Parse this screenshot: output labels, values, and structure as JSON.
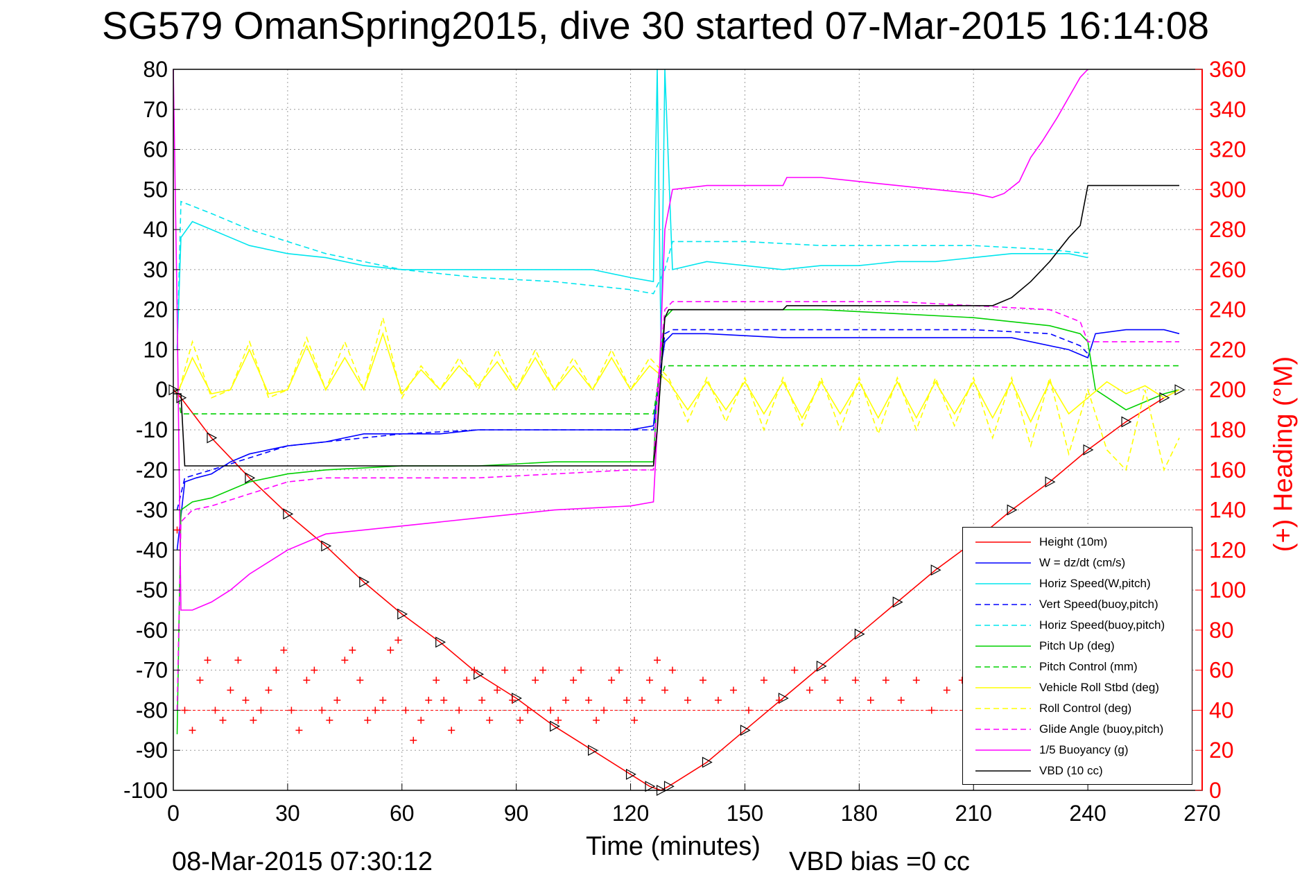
{
  "chart_data": {
    "type": "line",
    "title": "SG579 OmanSpring2015, dive 30 started 07-Mar-2015 16:14:08",
    "xlabel": "Time (minutes)",
    "ylabel": "",
    "y2label": "(+) Heading (°M)",
    "xlim": [
      0,
      270
    ],
    "ylim": [
      -100,
      80
    ],
    "y2lim": [
      0,
      360
    ],
    "xticks": [
      0,
      30,
      60,
      90,
      120,
      150,
      180,
      210,
      240,
      270
    ],
    "yticks": [
      80,
      70,
      60,
      50,
      40,
      30,
      20,
      10,
      0,
      -10,
      -20,
      -30,
      -40,
      -50,
      -60,
      -70,
      -80,
      -90,
      -100
    ],
    "y2ticks": [
      360,
      340,
      320,
      300,
      280,
      260,
      240,
      220,
      200,
      180,
      160,
      140,
      120,
      100,
      80,
      60,
      40,
      20,
      0
    ],
    "grid": true,
    "legend_position": "bottom-right",
    "series": [
      {
        "name": "Height (10m)",
        "color": "#ff0000",
        "style": "solid",
        "marker": "triangle",
        "x": [
          0,
          2,
          10,
          20,
          30,
          40,
          50,
          60,
          70,
          80,
          90,
          100,
          110,
          120,
          125,
          128,
          130,
          140,
          150,
          160,
          170,
          180,
          190,
          200,
          210,
          220,
          230,
          240,
          250,
          260,
          264
        ],
        "y": [
          0,
          -2,
          -12,
          -22,
          -31,
          -39,
          -48,
          -56,
          -63,
          -71,
          -77,
          -84,
          -90,
          -96,
          -99,
          -100,
          -99,
          -93,
          -85,
          -77,
          -69,
          -61,
          -53,
          -45,
          -38,
          -30,
          -23,
          -15,
          -8,
          -2,
          0
        ]
      },
      {
        "name": "W = dz/dt (cm/s)",
        "color": "#0000ff",
        "style": "solid",
        "x": [
          1,
          3,
          6,
          10,
          15,
          20,
          30,
          40,
          50,
          60,
          70,
          80,
          90,
          100,
          110,
          120,
          126,
          127,
          129,
          131,
          140,
          160,
          180,
          200,
          220,
          235,
          240,
          242,
          250,
          260,
          264
        ],
        "y": [
          -40,
          -23,
          -22,
          -21,
          -18,
          -16,
          -14,
          -13,
          -11,
          -11,
          -11,
          -10,
          -10,
          -10,
          -10,
          -10,
          -9,
          0,
          12,
          14,
          14,
          13,
          13,
          13,
          13,
          10,
          8,
          14,
          15,
          15,
          14
        ]
      },
      {
        "name": "Horiz Speed(W,pitch)",
        "color": "#00e5ee",
        "style": "solid",
        "x": [
          1,
          2,
          5,
          10,
          15,
          20,
          30,
          40,
          50,
          60,
          70,
          80,
          90,
          100,
          110,
          120,
          126,
          127,
          128,
          129,
          131,
          140,
          150,
          160,
          170,
          180,
          190,
          200,
          210,
          220,
          230,
          235,
          240
        ],
        "y": [
          10,
          38,
          42,
          40,
          38,
          36,
          34,
          33,
          31,
          30,
          30,
          30,
          30,
          30,
          30,
          28,
          27,
          80,
          10,
          80,
          30,
          32,
          31,
          30,
          31,
          31,
          32,
          32,
          33,
          34,
          34,
          34,
          33
        ]
      },
      {
        "name": "Vert Speed(buoy,pitch)",
        "color": "#0000ff",
        "style": "dashed",
        "x": [
          1,
          3,
          10,
          20,
          30,
          40,
          60,
          80,
          100,
          120,
          126,
          129,
          131,
          150,
          170,
          190,
          210,
          230,
          238,
          240
        ],
        "y": [
          -30,
          -22,
          -20,
          -17,
          -14,
          -13,
          -11,
          -10,
          -10,
          -10,
          -10,
          14,
          15,
          15,
          15,
          15,
          15,
          14,
          11,
          9
        ]
      },
      {
        "name": "Horiz Speed(buoy,pitch)",
        "color": "#00e5ee",
        "style": "dashed",
        "x": [
          1,
          2,
          10,
          20,
          40,
          60,
          80,
          100,
          120,
          126,
          129,
          131,
          150,
          170,
          190,
          210,
          230,
          240
        ],
        "y": [
          10,
          47,
          44,
          40,
          34,
          30,
          28,
          27,
          25,
          24,
          30,
          37,
          37,
          36,
          36,
          36,
          35,
          34
        ]
      },
      {
        "name": "Pitch Up (deg)",
        "color": "#00d000",
        "style": "solid",
        "x": [
          1,
          2,
          5,
          10,
          20,
          30,
          40,
          60,
          80,
          100,
          120,
          126,
          127,
          129,
          131,
          150,
          170,
          190,
          210,
          230,
          238,
          240,
          242,
          250,
          260,
          264
        ],
        "y": [
          -86,
          -30,
          -28,
          -27,
          -23,
          -21,
          -20,
          -19,
          -19,
          -18,
          -18,
          -18,
          0,
          18,
          20,
          20,
          20,
          19,
          18,
          16,
          14,
          12,
          0,
          -5,
          -1,
          0
        ]
      },
      {
        "name": "Pitch Control (mm)",
        "color": "#00d000",
        "style": "dashed",
        "x": [
          1,
          2,
          126,
          127,
          129,
          264
        ],
        "y": [
          0,
          -6,
          -6,
          0,
          6,
          6
        ]
      },
      {
        "name": "Vehicle Roll Stbd (deg)",
        "color": "#ffff00",
        "style": "solid",
        "x": [
          1,
          5,
          10,
          15,
          20,
          25,
          30,
          35,
          40,
          45,
          50,
          55,
          60,
          65,
          70,
          75,
          80,
          85,
          90,
          95,
          100,
          105,
          110,
          115,
          120,
          125,
          130,
          135,
          140,
          145,
          150,
          155,
          160,
          165,
          170,
          175,
          180,
          185,
          190,
          195,
          200,
          205,
          210,
          215,
          220,
          225,
          230,
          235,
          240,
          245,
          250,
          255,
          260,
          264
        ],
        "y": [
          -1,
          8,
          -1,
          0,
          10,
          -1,
          0,
          11,
          0,
          8,
          0,
          14,
          -1,
          5,
          0,
          6,
          1,
          7,
          0,
          8,
          0,
          6,
          0,
          8,
          0,
          6,
          2,
          -5,
          2,
          -5,
          2,
          -6,
          2,
          -7,
          2,
          -6,
          2,
          -7,
          2,
          -7,
          2,
          -6,
          2,
          -7,
          2,
          -8,
          2,
          -6,
          -2,
          2,
          -1,
          1,
          -2,
          0
        ]
      },
      {
        "name": "Roll Control (deg)",
        "color": "#ffff00",
        "style": "dashed",
        "x": [
          1,
          5,
          10,
          15,
          20,
          25,
          30,
          35,
          40,
          45,
          50,
          55,
          60,
          65,
          70,
          75,
          80,
          85,
          90,
          95,
          100,
          105,
          110,
          115,
          120,
          125,
          130,
          135,
          140,
          145,
          150,
          155,
          160,
          165,
          170,
          175,
          180,
          185,
          190,
          195,
          200,
          205,
          210,
          215,
          220,
          225,
          230,
          235,
          240,
          245,
          250,
          255,
          260,
          264
        ],
        "y": [
          -2,
          12,
          -2,
          0,
          12,
          -2,
          0,
          13,
          0,
          12,
          0,
          18,
          -2,
          6,
          0,
          8,
          0,
          10,
          0,
          10,
          0,
          8,
          0,
          10,
          0,
          8,
          3,
          -8,
          3,
          -8,
          3,
          -10,
          3,
          -9,
          3,
          -10,
          3,
          -11,
          3,
          -10,
          3,
          -9,
          3,
          -12,
          3,
          -14,
          3,
          -16,
          0,
          -15,
          -20,
          0,
          -20,
          -12
        ]
      },
      {
        "name": "Glide Angle (buoy,pitch)",
        "color": "#ff00ff",
        "style": "dashed",
        "x": [
          1,
          2,
          5,
          10,
          20,
          30,
          40,
          60,
          80,
          100,
          120,
          126,
          127,
          129,
          131,
          150,
          170,
          190,
          210,
          230,
          238,
          240,
          264
        ],
        "y": [
          -80,
          -33,
          -30,
          -29,
          -26,
          -23,
          -22,
          -22,
          -22,
          -21,
          -20,
          -20,
          0,
          20,
          22,
          22,
          22,
          22,
          21,
          20,
          17,
          12,
          12
        ]
      },
      {
        "name": "1/5 Buoyancy (g)",
        "color": "#ff00ff",
        "style": "solid",
        "x": [
          0,
          1,
          2,
          5,
          10,
          15,
          20,
          25,
          30,
          40,
          60,
          80,
          100,
          120,
          126,
          127,
          129,
          131,
          140,
          150,
          160,
          161,
          170,
          180,
          190,
          200,
          210,
          215,
          218,
          222,
          225,
          228,
          232,
          235,
          238,
          240
        ],
        "y": [
          80,
          20,
          -55,
          -55,
          -53,
          -50,
          -46,
          -43,
          -40,
          -36,
          -34,
          -32,
          -30,
          -29,
          -28,
          -10,
          40,
          50,
          51,
          51,
          51,
          53,
          53,
          52,
          51,
          50,
          49,
          48,
          49,
          52,
          58,
          62,
          68,
          73,
          78,
          80
        ]
      },
      {
        "name": "VBD (10 cc)",
        "color": "#000000",
        "style": "solid",
        "x": [
          0,
          2,
          3,
          126,
          127,
          129,
          130,
          160,
          161,
          215,
          220,
          225,
          230,
          235,
          238,
          240,
          264
        ],
        "y": [
          -1,
          -1,
          -19,
          -19,
          -10,
          18,
          20,
          20,
          21,
          21,
          23,
          27,
          32,
          38,
          41,
          51,
          51
        ]
      },
      {
        "name": "Heading",
        "color": "#ff0000",
        "style": "markers",
        "marker": "plus",
        "axis": "y2",
        "x": [
          1,
          3,
          5,
          7,
          9,
          11,
          13,
          15,
          17,
          19,
          21,
          23,
          25,
          27,
          29,
          31,
          33,
          35,
          37,
          39,
          41,
          43,
          45,
          47,
          49,
          51,
          53,
          55,
          57,
          59,
          61,
          63,
          65,
          67,
          69,
          71,
          73,
          75,
          77,
          79,
          81,
          83,
          85,
          87,
          89,
          91,
          93,
          95,
          97,
          99,
          101,
          103,
          105,
          107,
          109,
          111,
          113,
          115,
          117,
          119,
          121,
          123,
          125,
          127,
          129,
          131,
          135,
          139,
          143,
          147,
          151,
          155,
          159,
          163,
          167,
          171,
          175,
          179,
          183,
          187,
          191,
          195,
          199,
          203,
          207
        ],
        "y": [
          130,
          40,
          30,
          55,
          65,
          40,
          35,
          50,
          65,
          45,
          35,
          40,
          50,
          60,
          70,
          40,
          30,
          55,
          60,
          40,
          35,
          45,
          65,
          70,
          55,
          35,
          40,
          45,
          70,
          75,
          40,
          25,
          35,
          45,
          55,
          45,
          30,
          40,
          55,
          60,
          45,
          35,
          50,
          60,
          45,
          35,
          40,
          55,
          60,
          40,
          35,
          45,
          55,
          60,
          45,
          35,
          40,
          55,
          60,
          45,
          35,
          45,
          55,
          65,
          50,
          60,
          45,
          55,
          45,
          50,
          40,
          55,
          45,
          60,
          50,
          55,
          45,
          55,
          45,
          55,
          45,
          55,
          40,
          50,
          55
        ]
      }
    ],
    "reference_lines": [
      {
        "axis": "y2",
        "value": 40,
        "color": "#ff0000",
        "style": "dashed"
      }
    ]
  },
  "footer": {
    "timestamp": "08-Mar-2015 07:30:12",
    "vbd_bias": "VBD bias =0 cc"
  }
}
